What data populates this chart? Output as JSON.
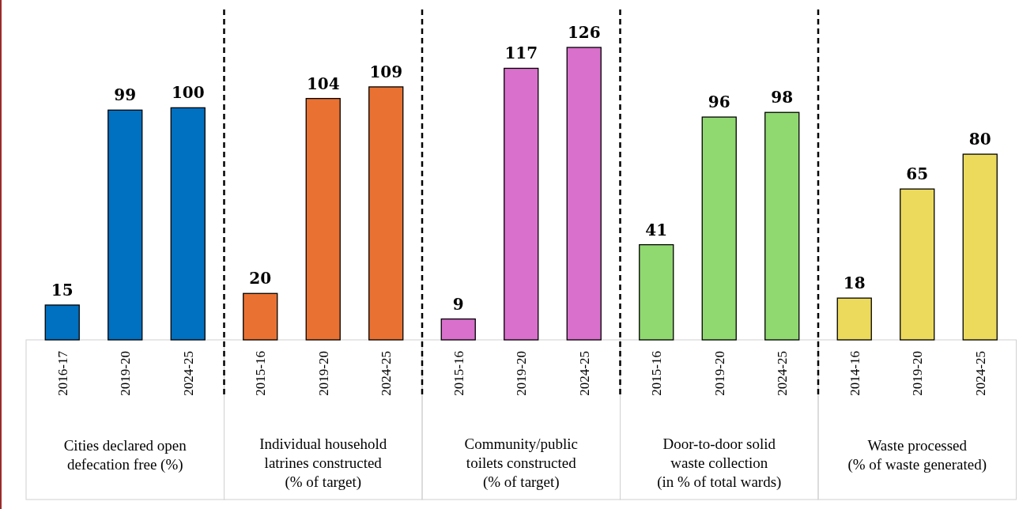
{
  "chart_data": [
    {
      "type": "bar",
      "categories": [
        "2016-17",
        "2019-20",
        "2024-25"
      ],
      "values": [
        15,
        99,
        100
      ],
      "color": "#0070c0",
      "xlabel": "Cities declared open\ndefecation free (%)",
      "data_labels": true
    },
    {
      "type": "bar",
      "categories": [
        "2015-16",
        "2019-20",
        "2024-25"
      ],
      "values": [
        20,
        104,
        109
      ],
      "color": "#e97132",
      "xlabel": "Individual household\nlatrines constructed\n(% of target)",
      "data_labels": true
    },
    {
      "type": "bar",
      "categories": [
        "2015-16",
        "2019-20",
        "2024-25"
      ],
      "values": [
        9,
        117,
        126
      ],
      "color": "#d870cc",
      "xlabel": "Community/public\ntoilets constructed\n(% of target)",
      "data_labels": true
    },
    {
      "type": "bar",
      "categories": [
        "2015-16",
        "2019-20",
        "2024-25"
      ],
      "values": [
        41,
        96,
        98
      ],
      "color": "#8fd970",
      "xlabel": "Door-to-door solid\nwaste collection\n(in % of total wards)",
      "data_labels": true
    },
    {
      "type": "bar",
      "categories": [
        "2014-16",
        "2019-20",
        "2024-25"
      ],
      "values": [
        18,
        65,
        80
      ],
      "color": "#ecda5c",
      "xlabel": "Waste processed\n(% of waste generated)",
      "data_labels": true
    }
  ]
}
